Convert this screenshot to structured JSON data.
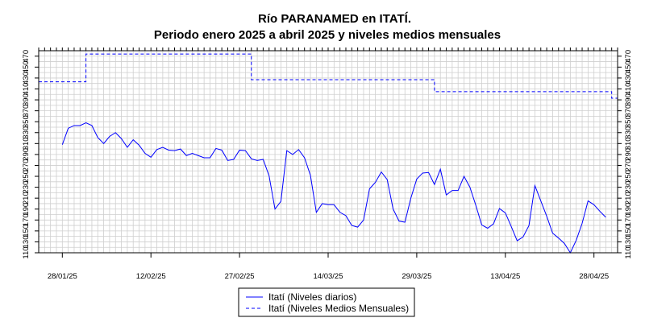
{
  "chart_data": {
    "type": "line",
    "title": "Río PARANAMED en ITATÍ.",
    "subtitle": "Periodo enero 2025 a abril 2025 y niveles medios mensuales",
    "x_axis": {
      "type": "date",
      "range": [
        "2025-01-24",
        "2025-05-02"
      ],
      "tick_labels": [
        "28/01/25",
        "12/02/25",
        "27/02/25",
        "14/03/25",
        "29/03/25",
        "13/04/25",
        "28/04/25"
      ],
      "tick_dates": [
        "2025-01-28",
        "2025-02-12",
        "2025-02-27",
        "2025-03-14",
        "2025-03-29",
        "2025-04-13",
        "2025-04-28"
      ]
    },
    "y_axis": {
      "range": [
        110,
        480
      ],
      "ticks": [
        110,
        130,
        150,
        170,
        190,
        210,
        230,
        250,
        270,
        290,
        310,
        330,
        350,
        370,
        390,
        410,
        430,
        450,
        470
      ],
      "labels_on_both_sides": true
    },
    "grid": true,
    "colors": {
      "series": "#0000ff",
      "grid": "#cfcfcf"
    },
    "legend": {
      "placement": "bottom-center",
      "entries": [
        "Itatí (Niveles diarios)",
        "Itatí (Niveles Medios Mensuales)"
      ]
    },
    "series": [
      {
        "name": "Itatí (Niveles diarios)",
        "style": "solid",
        "x": [
          "2025-01-28",
          "2025-01-29",
          "2025-01-30",
          "2025-01-31",
          "2025-02-01",
          "2025-02-02",
          "2025-02-03",
          "2025-02-04",
          "2025-02-05",
          "2025-02-06",
          "2025-02-07",
          "2025-02-08",
          "2025-02-09",
          "2025-02-10",
          "2025-02-11",
          "2025-02-12",
          "2025-02-13",
          "2025-02-14",
          "2025-02-15",
          "2025-02-16",
          "2025-02-17",
          "2025-02-18",
          "2025-02-19",
          "2025-02-20",
          "2025-02-21",
          "2025-02-22",
          "2025-02-23",
          "2025-02-24",
          "2025-02-25",
          "2025-02-26",
          "2025-02-27",
          "2025-02-28",
          "2025-03-01",
          "2025-03-02",
          "2025-03-03",
          "2025-03-04",
          "2025-03-05",
          "2025-03-06",
          "2025-03-07",
          "2025-03-08",
          "2025-03-09",
          "2025-03-10",
          "2025-03-11",
          "2025-03-12",
          "2025-03-13",
          "2025-03-14",
          "2025-03-15",
          "2025-03-16",
          "2025-03-17",
          "2025-03-18",
          "2025-03-19",
          "2025-03-20",
          "2025-03-21",
          "2025-03-22",
          "2025-03-23",
          "2025-03-24",
          "2025-03-25",
          "2025-03-26",
          "2025-03-27",
          "2025-03-28",
          "2025-03-29",
          "2025-03-30",
          "2025-03-31",
          "2025-04-01",
          "2025-04-02",
          "2025-04-03",
          "2025-04-04",
          "2025-04-05",
          "2025-04-06",
          "2025-04-07",
          "2025-04-08",
          "2025-04-09",
          "2025-04-10",
          "2025-04-11",
          "2025-04-12",
          "2025-04-13",
          "2025-04-14",
          "2025-04-15",
          "2025-04-16",
          "2025-04-17",
          "2025-04-18",
          "2025-04-19",
          "2025-04-20",
          "2025-04-21",
          "2025-04-22",
          "2025-04-23",
          "2025-04-24",
          "2025-04-25",
          "2025-04-26",
          "2025-04-27",
          "2025-04-28",
          "2025-04-29",
          "2025-04-30"
        ],
        "y": [
          308,
          338,
          343,
          343,
          348,
          343,
          321,
          310,
          323,
          330,
          319,
          303,
          317,
          307,
          292,
          285,
          299,
          303,
          298,
          297,
          300,
          288,
          292,
          288,
          284,
          284,
          301,
          298,
          279,
          281,
          298,
          297,
          282,
          279,
          281,
          251,
          190,
          204,
          297,
          290,
          299,
          284,
          252,
          184,
          200,
          198,
          198,
          184,
          178,
          160,
          157,
          170,
          227,
          239,
          258,
          244,
          190,
          168,
          166,
          210,
          245,
          256,
          257,
          235,
          263,
          216,
          224,
          224,
          250,
          230,
          197,
          161,
          155,
          163,
          191,
          183,
          158,
          132,
          139,
          160,
          233,
          205,
          177,
          146,
          137,
          127,
          110,
          133,
          164,
          205,
          198,
          186,
          175
        ]
      },
      {
        "name": "Itatí (Niveles Medios Mensuales)",
        "style": "dashed",
        "x": [
          "2025-01-24",
          "2025-02-01",
          "2025-02-01",
          "2025-03-01",
          "2025-03-01",
          "2025-04-01",
          "2025-04-01",
          "2025-05-01",
          "2025-05-01",
          "2025-05-02"
        ],
        "y": [
          423,
          423,
          474,
          474,
          427,
          427,
          405,
          405,
          393,
          393
        ]
      }
    ]
  }
}
